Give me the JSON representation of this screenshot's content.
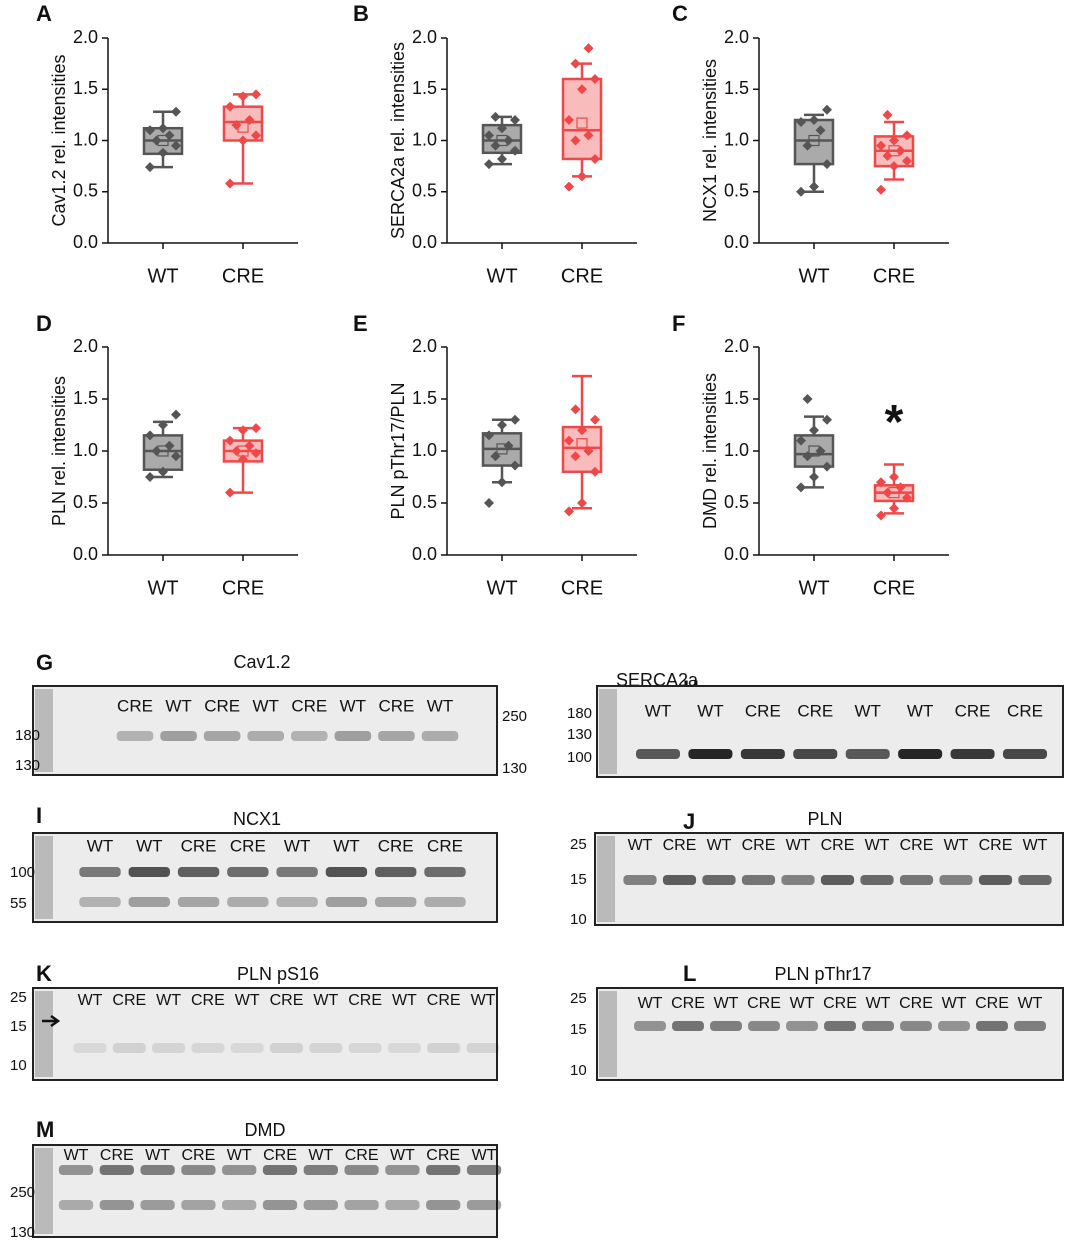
{
  "chart_data": [
    {
      "type": "box",
      "panel": "A",
      "ylabel": "Cav1.2 rel. intensities",
      "categories": [
        "WT",
        "CRE"
      ],
      "ylim": [
        0,
        2
      ],
      "yticks": [
        {
          "value": 0,
          "label": "0.0"
        },
        {
          "value": 0.5,
          "label": "0.5"
        },
        {
          "value": 1,
          "label": "1.0"
        },
        {
          "value": 1.5,
          "label": "1.5"
        },
        {
          "value": 2,
          "label": "2.0"
        }
      ],
      "boxes": [
        {
          "color": "#555555",
          "fill": "#aaaaaa",
          "whisker_low": 0.74,
          "q1": 0.87,
          "median": 1.0,
          "q3": 1.12,
          "whisker_high": 1.28,
          "mean": 1.0,
          "points": [
            0.74,
            0.88,
            0.95,
            1.0,
            1.05,
            1.1,
            1.12,
            1.28
          ]
        },
        {
          "color": "#f04848",
          "fill": "#f9bcbc",
          "whisker_low": 0.58,
          "q1": 1.0,
          "median": 1.18,
          "q3": 1.33,
          "whisker_high": 1.45,
          "mean": 1.13,
          "points": [
            0.58,
            1.0,
            1.05,
            1.15,
            1.2,
            1.33,
            1.43,
            1.45
          ]
        }
      ]
    },
    {
      "type": "box",
      "panel": "B",
      "ylabel": "SERCA2a rel. intensities",
      "categories": [
        "WT",
        "CRE"
      ],
      "ylim": [
        0,
        2
      ],
      "yticks": [
        {
          "value": 0,
          "label": "0.0"
        },
        {
          "value": 0.5,
          "label": "0.5"
        },
        {
          "value": 1,
          "label": "1.0"
        },
        {
          "value": 1.5,
          "label": "1.5"
        },
        {
          "value": 2,
          "label": "2.0"
        }
      ],
      "boxes": [
        {
          "color": "#555555",
          "fill": "#aaaaaa",
          "whisker_low": 0.77,
          "q1": 0.88,
          "median": 1.0,
          "q3": 1.15,
          "whisker_high": 1.23,
          "mean": 1.0,
          "points": [
            0.77,
            0.82,
            0.9,
            0.95,
            1.0,
            1.05,
            1.12,
            1.2,
            1.23
          ]
        },
        {
          "color": "#f04848",
          "fill": "#f9bcbc",
          "whisker_low": 0.65,
          "q1": 0.82,
          "median": 1.1,
          "q3": 1.6,
          "whisker_high": 1.75,
          "mean": 1.17,
          "points": [
            0.55,
            0.65,
            0.82,
            1.0,
            1.05,
            1.2,
            1.5,
            1.6,
            1.75,
            1.9
          ]
        }
      ]
    },
    {
      "type": "box",
      "panel": "C",
      "ylabel": "NCX1 rel. intensities",
      "categories": [
        "WT",
        "CRE"
      ],
      "ylim": [
        0,
        2
      ],
      "yticks": [
        {
          "value": 0,
          "label": "0.0"
        },
        {
          "value": 0.5,
          "label": "0.5"
        },
        {
          "value": 1,
          "label": "1.0"
        },
        {
          "value": 1.5,
          "label": "1.5"
        },
        {
          "value": 2,
          "label": "2.0"
        }
      ],
      "boxes": [
        {
          "color": "#555555",
          "fill": "#aaaaaa",
          "whisker_low": 0.5,
          "q1": 0.77,
          "median": 1.0,
          "q3": 1.2,
          "whisker_high": 1.25,
          "mean": 1.0,
          "points": [
            0.5,
            0.55,
            0.77,
            0.95,
            1.1,
            1.18,
            1.2,
            1.3
          ]
        },
        {
          "color": "#f04848",
          "fill": "#f9bcbc",
          "whisker_low": 0.62,
          "q1": 0.75,
          "median": 0.9,
          "q3": 1.04,
          "whisker_high": 1.18,
          "mean": 0.9,
          "points": [
            0.52,
            0.75,
            0.8,
            0.85,
            0.9,
            0.95,
            1.0,
            1.05,
            1.25
          ]
        }
      ]
    },
    {
      "type": "box",
      "panel": "D",
      "ylabel": "PLN rel. intensities",
      "categories": [
        "WT",
        "CRE"
      ],
      "ylim": [
        0,
        2
      ],
      "yticks": [
        {
          "value": 0,
          "label": "0.0"
        },
        {
          "value": 0.5,
          "label": "0.5"
        },
        {
          "value": 1,
          "label": "1.0"
        },
        {
          "value": 1.5,
          "label": "1.5"
        },
        {
          "value": 2,
          "label": "2.0"
        }
      ],
      "boxes": [
        {
          "color": "#555555",
          "fill": "#aaaaaa",
          "whisker_low": 0.75,
          "q1": 0.82,
          "median": 1.0,
          "q3": 1.15,
          "whisker_high": 1.28,
          "mean": 1.0,
          "points": [
            0.75,
            0.8,
            0.95,
            1.0,
            1.05,
            1.15,
            1.25,
            1.35
          ]
        },
        {
          "color": "#f04848",
          "fill": "#f9bcbc",
          "whisker_low": 0.6,
          "q1": 0.9,
          "median": 1.0,
          "q3": 1.1,
          "whisker_high": 1.22,
          "mean": 1.0,
          "points": [
            0.6,
            0.92,
            0.98,
            1.0,
            1.05,
            1.1,
            1.2,
            1.22
          ]
        }
      ]
    },
    {
      "type": "box",
      "panel": "E",
      "ylabel": "PLN pThr17/PLN",
      "categories": [
        "WT",
        "CRE"
      ],
      "ylim": [
        0,
        2
      ],
      "yticks": [
        {
          "value": 0,
          "label": "0.0"
        },
        {
          "value": 0.5,
          "label": "0.5"
        },
        {
          "value": 1,
          "label": "1.0"
        },
        {
          "value": 1.5,
          "label": "1.5"
        },
        {
          "value": 2,
          "label": "2.0"
        }
      ],
      "boxes": [
        {
          "color": "#555555",
          "fill": "#aaaaaa",
          "whisker_low": 0.7,
          "q1": 0.86,
          "median": 1.02,
          "q3": 1.17,
          "whisker_high": 1.3,
          "mean": 1.02,
          "points": [
            0.5,
            0.7,
            0.86,
            0.95,
            1.05,
            1.15,
            1.25,
            1.3
          ]
        },
        {
          "color": "#f04848",
          "fill": "#f9bcbc",
          "whisker_low": 0.45,
          "q1": 0.8,
          "median": 1.03,
          "q3": 1.23,
          "whisker_high": 1.72,
          "mean": 1.07,
          "points": [
            0.42,
            0.5,
            0.8,
            0.95,
            1.0,
            1.1,
            1.2,
            1.3,
            1.4
          ]
        }
      ]
    },
    {
      "type": "box",
      "panel": "F",
      "ylabel": "DMD rel. intensities",
      "categories": [
        "WT",
        "CRE"
      ],
      "annotation": "*",
      "ylim": [
        0,
        2
      ],
      "yticks": [
        {
          "value": 0,
          "label": "0.0"
        },
        {
          "value": 0.5,
          "label": "0.5"
        },
        {
          "value": 1,
          "label": "1.0"
        },
        {
          "value": 1.5,
          "label": "1.5"
        },
        {
          "value": 2,
          "label": "2.0"
        }
      ],
      "boxes": [
        {
          "color": "#555555",
          "fill": "#aaaaaa",
          "whisker_low": 0.65,
          "q1": 0.85,
          "median": 0.97,
          "q3": 1.15,
          "whisker_high": 1.33,
          "mean": 1.0,
          "points": [
            0.65,
            0.75,
            0.85,
            0.95,
            1.0,
            1.1,
            1.2,
            1.3,
            1.5
          ]
        },
        {
          "color": "#f04848",
          "fill": "#f9bcbc",
          "whisker_low": 0.4,
          "q1": 0.52,
          "median": 0.6,
          "q3": 0.67,
          "whisker_high": 0.87,
          "mean": 0.6,
          "points": [
            0.38,
            0.45,
            0.55,
            0.6,
            0.65,
            0.7,
            0.75
          ]
        }
      ]
    }
  ],
  "blots": [
    {
      "panel": "G",
      "title": "Cav1.2",
      "lanes": [
        "CRE",
        "WT",
        "CRE",
        "WT",
        "CRE",
        "WT",
        "CRE",
        "WT"
      ],
      "markers_left": [
        "180",
        "130"
      ],
      "markers_right": [
        "250",
        "130"
      ]
    },
    {
      "panel": "H",
      "title": "SERCA2a",
      "lanes": [
        "WT",
        "WT",
        "CRE",
        "CRE",
        "WT",
        "WT",
        "CRE",
        "CRE"
      ],
      "markers_left": [
        "180",
        "130",
        "100"
      ]
    },
    {
      "panel": "I",
      "title": "NCX1",
      "lanes": [
        "WT",
        "WT",
        "CRE",
        "CRE",
        "WT",
        "WT",
        "CRE",
        "CRE"
      ],
      "markers_left": [
        "100",
        "55"
      ]
    },
    {
      "panel": "J",
      "title": "PLN",
      "lanes": [
        "WT",
        "CRE",
        "WT",
        "CRE",
        "WT",
        "CRE",
        "WT",
        "CRE",
        "WT",
        "CRE",
        "WT"
      ],
      "markers_left": [
        "25",
        "15",
        "10"
      ]
    },
    {
      "panel": "K",
      "title": "PLN pS16",
      "lanes": [
        "WT",
        "CRE",
        "WT",
        "CRE",
        "WT",
        "CRE",
        "WT",
        "CRE",
        "WT",
        "CRE",
        "WT"
      ],
      "markers_left": [
        "25",
        "15",
        "10"
      ]
    },
    {
      "panel": "L",
      "title": "PLN pThr17",
      "lanes": [
        "WT",
        "CRE",
        "WT",
        "CRE",
        "WT",
        "CRE",
        "WT",
        "CRE",
        "WT",
        "CRE",
        "WT"
      ],
      "markers_left": [
        "25",
        "15",
        "10"
      ]
    },
    {
      "panel": "M",
      "title": "DMD",
      "lanes": [
        "WT",
        "CRE",
        "WT",
        "CRE",
        "WT",
        "CRE",
        "WT",
        "CRE",
        "WT",
        "CRE",
        "WT"
      ],
      "markers_left": [
        "250",
        "130"
      ]
    }
  ]
}
